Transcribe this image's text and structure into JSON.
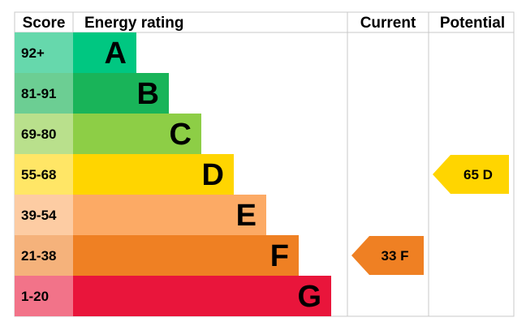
{
  "headers": {
    "score": "Score",
    "rating": "Energy rating",
    "current": "Current",
    "potential": "Potential"
  },
  "chart_data": {
    "type": "bar",
    "bands": [
      {
        "score": "92+",
        "letter": "A",
        "band_color": "#00c781",
        "score_color": "#66d8ac",
        "letter_color": "#000000"
      },
      {
        "score": "81-91",
        "letter": "B",
        "band_color": "#19b459",
        "score_color": "#6cce93",
        "letter_color": "#000000"
      },
      {
        "score": "69-80",
        "letter": "C",
        "band_color": "#8dce46",
        "score_color": "#b9e08c",
        "letter_color": "#000000"
      },
      {
        "score": "55-68",
        "letter": "D",
        "band_color": "#ffd500",
        "score_color": "#ffe666",
        "letter_color": "#000000"
      },
      {
        "score": "39-54",
        "letter": "E",
        "band_color": "#fcaa65",
        "score_color": "#fdcca3",
        "letter_color": "#000000"
      },
      {
        "score": "21-38",
        "letter": "F",
        "band_color": "#ef8023",
        "score_color": "#f5b27b",
        "letter_color": "#000000"
      },
      {
        "score": "1-20",
        "letter": "G",
        "band_color": "#e9153b",
        "score_color": "#f27389",
        "letter_color": "#000000"
      }
    ],
    "current": {
      "label": "33 F",
      "value": 33,
      "band": "F",
      "color": "#ef8023"
    },
    "potential": {
      "label": "65 D",
      "value": 65,
      "band": "D",
      "color": "#ffd500"
    }
  }
}
